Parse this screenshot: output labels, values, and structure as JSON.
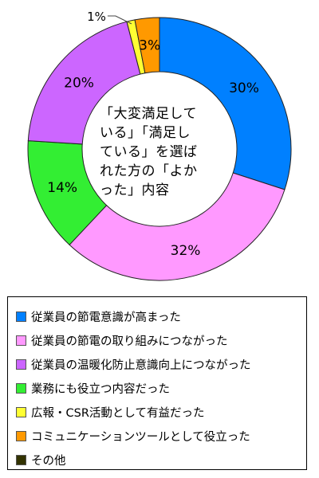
{
  "chart_data": {
    "type": "pie",
    "donut": true,
    "center_text": "「大変満足して\nいる」「満足し\nている」を選ば\nれた方の「よか\nった」内容",
    "slices": [
      {
        "label": "従業員の節電意識が高まった",
        "value": 30,
        "display": "30%",
        "color": "#0080FF"
      },
      {
        "label": "従業員の節電の取り組みにつながった",
        "value": 32,
        "display": "32%",
        "color": "#FF99FF"
      },
      {
        "label": "業務にも役立つ内容だった",
        "value": 14,
        "display": "14%",
        "color": "#33EE33"
      },
      {
        "label": "従業員の温暖化防止意識向上につながった",
        "value": 20,
        "display": "20%",
        "color": "#CC66FF"
      },
      {
        "label": "広報・CSR活動として有益だった",
        "value": 1,
        "display": "1%",
        "color": "#FFFF33"
      },
      {
        "label": "コミュニケーションツールとして役立った",
        "value": 3,
        "display": "3%",
        "color": "#FF9900"
      },
      {
        "label": "その他",
        "value": 0,
        "display": "",
        "color": "#333300"
      }
    ],
    "draw_order": [
      0,
      1,
      2,
      3,
      4,
      5
    ],
    "legend_order": [
      0,
      1,
      3,
      2,
      4,
      5,
      6
    ],
    "legend_position": "bottom"
  }
}
